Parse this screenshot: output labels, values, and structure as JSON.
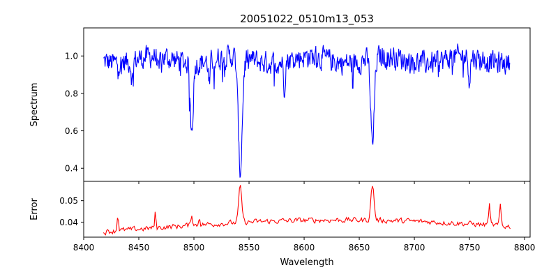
{
  "chart_data": [
    {
      "type": "line",
      "title": "20051022_0510m13_053",
      "ylabel": "Spectrum",
      "xlim": [
        8400,
        8805
      ],
      "ylim": [
        0.33,
        1.15
      ],
      "xticks": [
        8400,
        8450,
        8500,
        8550,
        8600,
        8650,
        8700,
        8750,
        8800
      ],
      "yticks": [
        0.4,
        0.6,
        0.8,
        1.0
      ],
      "ytick_labels": [
        "0.4",
        "0.6",
        "0.8",
        "1.0"
      ],
      "series": [
        {
          "color": "#0000ff",
          "x_range": [
            8418,
            8787
          ],
          "continuum": 0.98,
          "features": [
            {
              "x": 8498.0,
              "y": 0.61,
              "width": 1.3
            },
            {
              "x": 8542.0,
              "y": 0.37,
              "width": 1.8
            },
            {
              "x": 8662.0,
              "y": 0.51,
              "width": 1.6
            },
            {
              "x": 8582.0,
              "y": 0.85,
              "width": 0.8
            },
            {
              "x": 8444.0,
              "y": 0.87,
              "width": 0.8
            },
            {
              "x": 8514.0,
              "y": 0.84,
              "width": 0.8
            },
            {
              "x": 8468.0,
              "y": 0.88,
              "width": 0.8
            },
            {
              "x": 8750.0,
              "y": 0.86,
              "width": 0.8
            }
          ]
        }
      ]
    },
    {
      "type": "line",
      "xlabel": "Wavelength",
      "ylabel": "Error",
      "xlim": [
        8400,
        8805
      ],
      "ylim": [
        0.033,
        0.059
      ],
      "xticks": [
        8400,
        8450,
        8500,
        8550,
        8600,
        8650,
        8700,
        8750,
        8800
      ],
      "xtick_labels": [
        "8400",
        "8450",
        "8500",
        "8550",
        "8600",
        "8650",
        "8700",
        "8750",
        "8800"
      ],
      "yticks": [
        0.04,
        0.05
      ],
      "ytick_labels": [
        "0.04",
        "0.05"
      ],
      "series": [
        {
          "color": "#ff0000",
          "x_range": [
            8418,
            8787
          ],
          "baseline_start": 0.0355,
          "baseline_end": 0.041,
          "features": [
            {
              "x": 8431.0,
              "y": 0.049,
              "width": 0.6
            },
            {
              "x": 8465.0,
              "y": 0.048,
              "width": 0.6
            },
            {
              "x": 8498.0,
              "y": 0.046,
              "width": 0.8
            },
            {
              "x": 8505.0,
              "y": 0.045,
              "width": 0.6
            },
            {
              "x": 8542.0,
              "y": 0.0575,
              "width": 1.4
            },
            {
              "x": 8662.0,
              "y": 0.0575,
              "width": 1.4
            },
            {
              "x": 8768.0,
              "y": 0.0505,
              "width": 0.7
            },
            {
              "x": 8778.0,
              "y": 0.0505,
              "width": 0.7
            }
          ]
        }
      ]
    }
  ]
}
